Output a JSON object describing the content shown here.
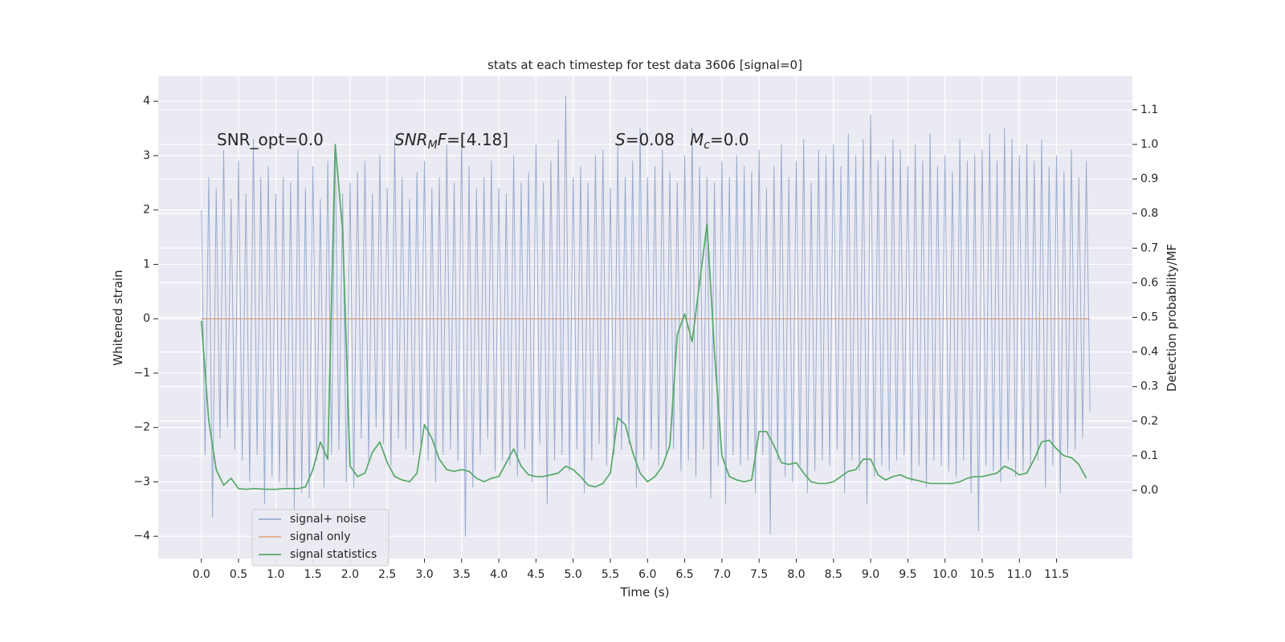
{
  "chart_data": {
    "type": "line",
    "title": "stats at each timestep for test data 3606 [signal=0]",
    "xlabel": "Time (s)",
    "ylabel": "Whitened strain",
    "y2label": "Detection probability/MF",
    "xlim": [
      -0.58,
      12.52
    ],
    "ylim": [
      -4.41,
      4.46
    ],
    "y2lim": [
      -0.197,
      1.197
    ],
    "xticks": [
      {
        "value": 0,
        "label": "0.0"
      },
      0.5,
      {
        "value": 1,
        "label": "1.0"
      },
      1.5,
      {
        "value": 2,
        "label": "2.0"
      },
      2.5,
      {
        "value": 3,
        "label": "3.0"
      },
      3.5,
      {
        "value": 4,
        "label": "4.0"
      },
      4.5,
      {
        "value": 5,
        "label": "5.0"
      },
      5.5,
      {
        "value": 6,
        "label": "6.0"
      },
      6.5,
      {
        "value": 7,
        "label": "7.0"
      },
      7.5,
      {
        "value": 8,
        "label": "8.0"
      },
      8.5,
      {
        "value": 9,
        "label": "9.0"
      },
      9.5,
      {
        "value": 10,
        "label": "10.0"
      },
      10.5,
      {
        "value": 11,
        "label": "11.0"
      },
      11.5
    ],
    "yticks": [
      {
        "value": -4,
        "label": "−4"
      },
      {
        "value": -3,
        "label": "−3"
      },
      {
        "value": -2,
        "label": "−2"
      },
      {
        "value": -1,
        "label": "−1"
      },
      0,
      1,
      2,
      3,
      4
    ],
    "y2ticks": [
      {
        "value": 0,
        "label": "0.0"
      },
      0.1,
      0.2,
      0.3,
      0.4,
      0.5,
      0.6,
      0.7,
      0.8,
      0.9,
      {
        "value": 1,
        "label": "1.0"
      },
      1.1
    ],
    "grid": true,
    "legend": "lower left",
    "annotations": [
      {
        "parts": [
          {
            "text": "SNR_opt=0.0"
          }
        ]
      },
      {
        "parts": [
          {
            "text": "SNR",
            "italic": true
          },
          {
            "text": "M",
            "italic": true,
            "sub": true
          },
          {
            "text": "F",
            "italic": true
          },
          {
            "text": "=[4.18]"
          }
        ]
      },
      {
        "parts": [
          {
            "text": "S",
            "italic": true
          },
          {
            "text": "=0.08"
          }
        ]
      },
      {
        "parts": [
          {
            "text": "M",
            "italic": true
          },
          {
            "text": "c",
            "italic": true,
            "sub": true
          },
          {
            "text": "=0.0"
          }
        ]
      }
    ],
    "series": [
      {
        "name": "signal+ noise",
        "color": "#9aacd1",
        "x": [
          0,
          0.05,
          0.1,
          0.15,
          0.2,
          0.25,
          0.3,
          0.35,
          0.4,
          0.45,
          0.5,
          0.55,
          0.6,
          0.65,
          0.7,
          0.75,
          0.8,
          0.85,
          0.9,
          0.95,
          1,
          1.05,
          1.1,
          1.15,
          1.2,
          1.25,
          1.3,
          1.35,
          1.4,
          1.45,
          1.5,
          1.55,
          1.6,
          1.65,
          1.7,
          1.75,
          1.8,
          1.85,
          1.9,
          1.95,
          2,
          2.05,
          2.1,
          2.15,
          2.2,
          2.25,
          2.3,
          2.35,
          2.4,
          2.45,
          2.5,
          2.55,
          2.6,
          2.65,
          2.7,
          2.75,
          2.8,
          2.85,
          2.9,
          2.95,
          3,
          3.05,
          3.1,
          3.15,
          3.2,
          3.25,
          3.3,
          3.35,
          3.4,
          3.45,
          3.5,
          3.55,
          3.6,
          3.65,
          3.7,
          3.75,
          3.8,
          3.85,
          3.9,
          3.95,
          4,
          4.05,
          4.1,
          4.15,
          4.2,
          4.25,
          4.3,
          4.35,
          4.4,
          4.45,
          4.5,
          4.55,
          4.6,
          4.65,
          4.7,
          4.75,
          4.8,
          4.85,
          4.9,
          4.95,
          5,
          5.05,
          5.1,
          5.15,
          5.2,
          5.25,
          5.3,
          5.35,
          5.4,
          5.45,
          5.5,
          5.55,
          5.6,
          5.65,
          5.7,
          5.75,
          5.8,
          5.85,
          5.9,
          5.95,
          6,
          6.05,
          6.1,
          6.15,
          6.2,
          6.25,
          6.3,
          6.35,
          6.4,
          6.45,
          6.5,
          6.55,
          6.6,
          6.65,
          6.7,
          6.75,
          6.8,
          6.85,
          6.9,
          6.95,
          7,
          7.05,
          7.1,
          7.15,
          7.2,
          7.25,
          7.3,
          7.35,
          7.4,
          7.45,
          7.5,
          7.55,
          7.6,
          7.65,
          7.7,
          7.75,
          7.8,
          7.85,
          7.9,
          7.95,
          8,
          8.05,
          8.1,
          8.15,
          8.2,
          8.25,
          8.3,
          8.35,
          8.4,
          8.45,
          8.5,
          8.55,
          8.6,
          8.65,
          8.7,
          8.75,
          8.8,
          8.85,
          8.9,
          8.95,
          9,
          9.05,
          9.1,
          9.15,
          9.2,
          9.25,
          9.3,
          9.35,
          9.4,
          9.45,
          9.5,
          9.55,
          9.6,
          9.65,
          9.7,
          9.75,
          9.8,
          9.85,
          9.9,
          9.95,
          10,
          10.05,
          10.1,
          10.15,
          10.2,
          10.25,
          10.3,
          10.35,
          10.4,
          10.45,
          10.5,
          10.55,
          10.6,
          10.65,
          10.7,
          10.75,
          10.8,
          10.85,
          10.9,
          10.95,
          11,
          11.05,
          11.1,
          11.15,
          11.2,
          11.25,
          11.3,
          11.35,
          11.4,
          11.45,
          11.5,
          11.55,
          11.6,
          11.65,
          11.7,
          11.75,
          11.8,
          11.85,
          11.9,
          11.95
        ],
        "values": [
          2.0,
          -2.5,
          2.6,
          -3.65,
          2.4,
          -2.2,
          3.1,
          -2.0,
          2.2,
          -2.4,
          2.9,
          -2.6,
          2.3,
          -3.0,
          3.3,
          -2.5,
          2.6,
          -3.4,
          2.8,
          -2.9,
          2.3,
          -3.0,
          2.6,
          -3.1,
          2.5,
          -3.5,
          3.1,
          -3.2,
          2.4,
          -3.3,
          2.8,
          -2.6,
          2.2,
          -3.1,
          2.9,
          -2.5,
          3.2,
          -2.4,
          2.3,
          -3.0,
          2.5,
          -3.1,
          2.7,
          -2.2,
          2.9,
          -2.6,
          2.3,
          -2.0,
          3.0,
          -2.3,
          2.4,
          -2.7,
          3.3,
          -2.2,
          2.6,
          -2.4,
          2.2,
          -2.5,
          2.7,
          -2.3,
          2.9,
          -2.6,
          2.4,
          -3.0,
          2.6,
          -2.5,
          3.2,
          -2.4,
          2.5,
          -2.6,
          3.4,
          -4.0,
          2.8,
          -3.1,
          2.4,
          -2.5,
          2.6,
          -2.2,
          2.9,
          -2.8,
          2.4,
          -2.6,
          2.3,
          -2.7,
          3.0,
          -2.9,
          2.5,
          -2.4,
          2.7,
          -3.0,
          3.2,
          -2.3,
          2.5,
          -3.4,
          2.9,
          -2.6,
          3.3,
          -2.5,
          4.1,
          -2.8,
          2.6,
          -2.4,
          2.8,
          -3.2,
          2.5,
          -2.6,
          3.0,
          -2.3,
          3.1,
          -2.7,
          2.4,
          -2.5,
          3.2,
          -2.4,
          2.6,
          -2.3,
          2.9,
          -3.1,
          3.5,
          -2.6,
          2.6,
          -2.4,
          2.8,
          -2.7,
          3.1,
          -2.5,
          2.7,
          -2.4,
          2.5,
          -2.8,
          3.0,
          -2.6,
          3.5,
          -2.9,
          2.8,
          -2.4,
          2.6,
          -3.3,
          2.5,
          -2.7,
          2.9,
          -3.4,
          2.6,
          -2.5,
          3.0,
          -2.7,
          2.8,
          -2.6,
          2.7,
          -3.2,
          3.1,
          -2.5,
          2.4,
          -3.95,
          2.8,
          -2.6,
          3.2,
          -2.9,
          2.6,
          -3.0,
          2.9,
          -2.7,
          3.3,
          -3.2,
          2.5,
          -2.8,
          3.1,
          -2.6,
          3.0,
          -2.7,
          3.2,
          -2.4,
          2.8,
          -3.2,
          3.4,
          -2.6,
          3.0,
          -2.8,
          3.3,
          -3.4,
          3.75,
          -2.9,
          2.9,
          -2.7,
          3.0,
          -2.8,
          3.3,
          -2.6,
          3.1,
          -2.5,
          2.8,
          -3.0,
          3.2,
          -2.7,
          2.9,
          -3.1,
          3.4,
          -2.6,
          2.8,
          -2.7,
          3.0,
          -2.8,
          2.7,
          -2.9,
          3.3,
          -2.6,
          2.9,
          -3.2,
          3.0,
          -3.9,
          3.1,
          -2.7,
          3.4,
          -2.8,
          2.9,
          -3.0,
          3.5,
          -2.6,
          3.3,
          -2.9,
          3.0,
          -2.8,
          3.2,
          -2.7,
          2.9,
          -2.6,
          3.3,
          -3.1,
          2.8,
          -2.7,
          3.0,
          -3.2,
          2.7,
          -2.5,
          3.1,
          -2.4,
          2.6,
          -2.2,
          2.9,
          -1.7
        ]
      },
      {
        "name": "signal only",
        "color": "#e6a989",
        "x": [
          0,
          11.95
        ],
        "values": [
          0,
          0
        ]
      },
      {
        "name": "signal statistics",
        "color": "#55a868",
        "axis": "y2",
        "x": [
          0,
          0.1,
          0.2,
          0.3,
          0.4,
          0.5,
          0.6,
          0.7,
          0.8,
          0.9,
          1,
          1.1,
          1.2,
          1.3,
          1.4,
          1.5,
          1.6,
          1.7,
          1.8,
          1.9,
          2,
          2.1,
          2.2,
          2.3,
          2.4,
          2.5,
          2.6,
          2.7,
          2.8,
          2.9,
          3,
          3.1,
          3.2,
          3.3,
          3.4,
          3.5,
          3.6,
          3.7,
          3.8,
          3.9,
          4,
          4.1,
          4.2,
          4.3,
          4.4,
          4.5,
          4.6,
          4.7,
          4.8,
          4.9,
          5,
          5.1,
          5.2,
          5.3,
          5.4,
          5.5,
          5.6,
          5.7,
          5.8,
          5.9,
          6,
          6.1,
          6.2,
          6.3,
          6.4,
          6.5,
          6.6,
          6.7,
          6.8,
          6.9,
          7,
          7.1,
          7.2,
          7.3,
          7.4,
          7.5,
          7.6,
          7.7,
          7.8,
          7.9,
          8,
          8.1,
          8.2,
          8.3,
          8.4,
          8.5,
          8.6,
          8.7,
          8.8,
          8.9,
          9,
          9.1,
          9.2,
          9.3,
          9.4,
          9.5,
          9.6,
          9.7,
          9.8,
          9.9,
          10,
          10.1,
          10.2,
          10.3,
          10.4,
          10.5,
          10.6,
          10.7,
          10.8,
          10.9,
          11,
          11.1,
          11.2,
          11.3,
          11.4,
          11.5,
          11.6,
          11.7,
          11.8,
          11.9
        ],
        "values": [
          0.49,
          0.2,
          0.06,
          0.015,
          0.035,
          0.005,
          0.003,
          0.005,
          0.004,
          0.003,
          0.003,
          0.005,
          0.005,
          0.005,
          0.01,
          0.06,
          0.14,
          0.09,
          1.0,
          0.75,
          0.07,
          0.04,
          0.05,
          0.11,
          0.14,
          0.08,
          0.04,
          0.03,
          0.025,
          0.05,
          0.19,
          0.15,
          0.09,
          0.06,
          0.055,
          0.06,
          0.055,
          0.035,
          0.025,
          0.035,
          0.04,
          0.08,
          0.12,
          0.07,
          0.045,
          0.04,
          0.04,
          0.045,
          0.05,
          0.07,
          0.06,
          0.04,
          0.015,
          0.01,
          0.02,
          0.05,
          0.21,
          0.19,
          0.11,
          0.05,
          0.025,
          0.04,
          0.07,
          0.13,
          0.45,
          0.51,
          0.43,
          0.6,
          0.77,
          0.4,
          0.1,
          0.04,
          0.03,
          0.025,
          0.03,
          0.17,
          0.17,
          0.13,
          0.08,
          0.075,
          0.08,
          0.05,
          0.025,
          0.02,
          0.02,
          0.025,
          0.04,
          0.055,
          0.06,
          0.09,
          0.09,
          0.045,
          0.03,
          0.04,
          0.045,
          0.035,
          0.03,
          0.025,
          0.02,
          0.02,
          0.02,
          0.02,
          0.025,
          0.035,
          0.04,
          0.04,
          0.045,
          0.05,
          0.07,
          0.06,
          0.045,
          0.05,
          0.09,
          0.14,
          0.145,
          0.12,
          0.1,
          0.095,
          0.075,
          0.035
        ]
      }
    ]
  }
}
